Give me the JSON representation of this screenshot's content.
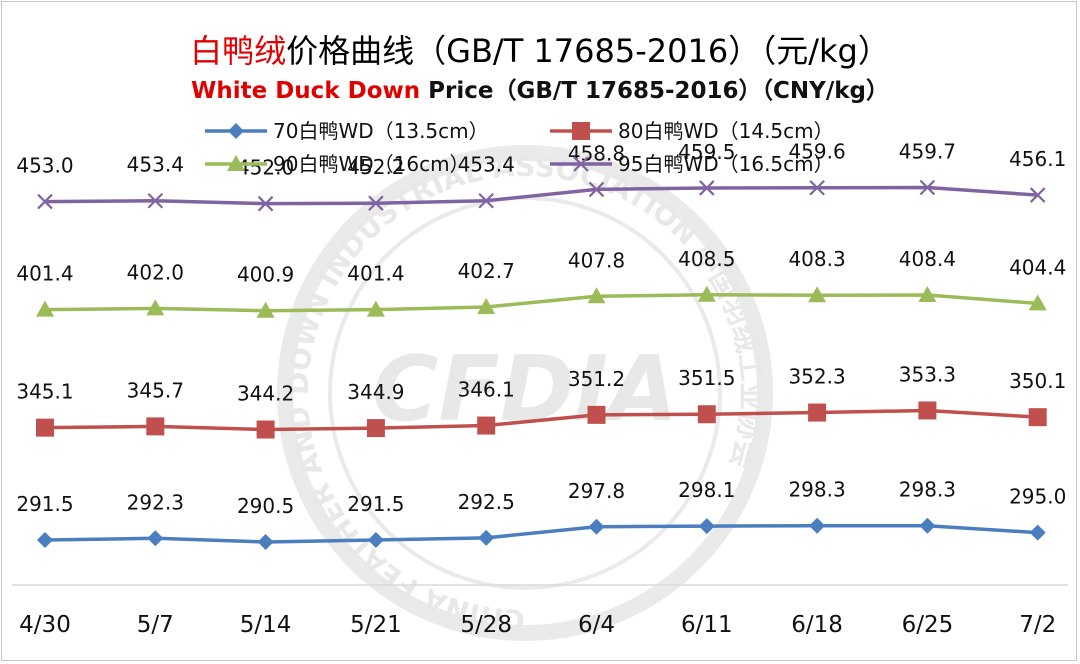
{
  "header": {
    "title_cn_red": "白鸭绒",
    "title_cn_rest": "价格曲线（GB/T 17685-2016）（元/kg）",
    "title_en_red": "White Duck Down",
    "title_en_rest": " Price（GB/T 17685-2016）（CNY/kg）"
  },
  "watermark": {
    "text": "CFDIA",
    "ring_text": "CHINA FEATHER AND DOWN INDUSTRIAL ASSOCIATION 中国羽绒工业协会"
  },
  "chart_data": {
    "type": "line",
    "title": "白鸭绒价格曲线（GB/T 17685-2016）（元/kg）",
    "subtitle": "White Duck Down Price（GB/T 17685-2016）（CNY/kg）",
    "categories": [
      "4/30",
      "5/7",
      "5/14",
      "5/21",
      "5/28",
      "6/4",
      "6/11",
      "6/18",
      "6/25",
      "7/2"
    ],
    "ylim": [
      270,
      480
    ],
    "grid": false,
    "legend_position": "top",
    "series": [
      {
        "name": "70白鸭WD（13.5cm）",
        "color": "#4a7ebf",
        "marker": "diamond",
        "values": [
          291.5,
          292.3,
          290.5,
          291.5,
          292.5,
          297.8,
          298.1,
          298.3,
          298.3,
          295.0
        ]
      },
      {
        "name": "80白鸭WD（14.5cm）",
        "color": "#c0504d",
        "marker": "square",
        "values": [
          345.1,
          345.7,
          344.2,
          344.9,
          346.1,
          351.2,
          351.5,
          352.3,
          353.3,
          350.1
        ]
      },
      {
        "name": "90白鸭WD（16cm）",
        "color": "#9bbb59",
        "marker": "triangle",
        "values": [
          401.4,
          402.0,
          400.9,
          401.4,
          402.7,
          407.8,
          408.5,
          408.3,
          408.4,
          404.4
        ]
      },
      {
        "name": "95白鸭WD（16.5cm）",
        "color": "#8064a2",
        "marker": "cross",
        "values": [
          453.0,
          453.4,
          452.0,
          452.2,
          453.4,
          458.8,
          459.5,
          459.6,
          459.7,
          456.1
        ]
      }
    ]
  }
}
